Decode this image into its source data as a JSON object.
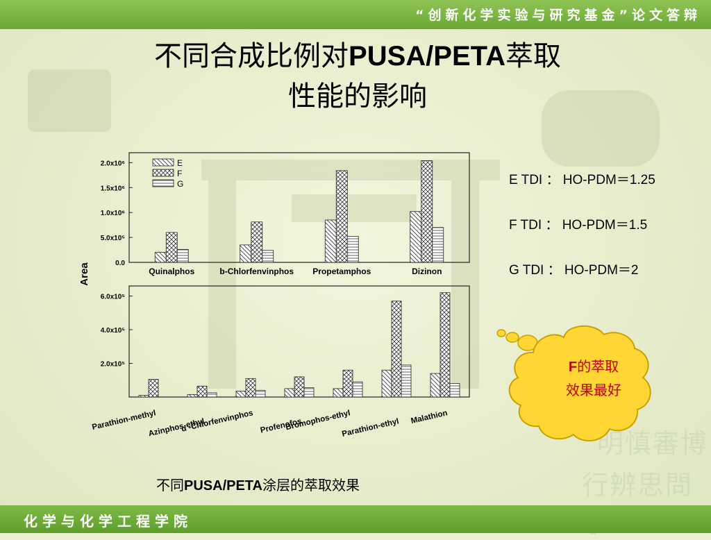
{
  "header": {
    "banner": "“创新化学实验与研究基金”论文答辩"
  },
  "footer": {
    "department": "化学与化学工程学院"
  },
  "slide": {
    "title_line1_a": "不同合成比例对",
    "title_line1_b": "PUSA/PETA",
    "title_line1_c": "萃取",
    "title_line2": "性能的影响",
    "caption_a": "不同",
    "caption_b": "PUSA/PETA",
    "caption_c": "涂层的萃取效果",
    "ratios": [
      "E TDI ： HO-PDM＝1.25",
      "F TDI ： HO-PDM＝1.5",
      "G TDI ： HO-PDM＝2"
    ],
    "bubble_line1_a": "F",
    "bubble_line1_b": "的萃取",
    "bubble_line2": "效果最好",
    "watermark_motto_1": "明慎審博",
    "watermark_motto_2": "行辨思問學"
  },
  "colors": {
    "topbar": "#6aa834",
    "bubble_fill": "#ffd633",
    "bubble_text": "#c00000"
  },
  "chart_data": [
    {
      "type": "bar",
      "ylabel": "Area",
      "legend": [
        "E",
        "F",
        "G"
      ],
      "legend_position": "top-left",
      "categories": [
        "Quinalphos",
        "b-Chlorfenvinphos",
        "Propetamphos",
        "Dizinon"
      ],
      "yticks": [
        "0.0",
        "5.0x10⁵",
        "1.0x10⁶",
        "1.5x10⁶",
        "2.0x10⁶"
      ],
      "ylim": [
        0,
        2200000
      ],
      "series": [
        {
          "name": "E",
          "values": [
            200000,
            350000,
            850000,
            1020000
          ]
        },
        {
          "name": "F",
          "values": [
            600000,
            810000,
            1840000,
            2040000
          ]
        },
        {
          "name": "G",
          "values": [
            260000,
            240000,
            520000,
            700000
          ]
        }
      ]
    },
    {
      "type": "bar",
      "categories": [
        "Parathion-methyl",
        "Azinphos-ethyl",
        "α -Chlorfenvinphos",
        "Profenofos",
        "Bromophos-ethyl",
        "Parathion-ethyl",
        "Malathion"
      ],
      "yticks": [
        "2.0x10⁵",
        "4.0x10⁵",
        "6.0x10⁵"
      ],
      "ylim": [
        0,
        660000
      ],
      "series": [
        {
          "name": "E",
          "values": [
            10000,
            15000,
            35000,
            50000,
            50000,
            160000,
            140000
          ]
        },
        {
          "name": "F",
          "values": [
            105000,
            65000,
            110000,
            120000,
            160000,
            570000,
            620000
          ]
        },
        {
          "name": "G",
          "values": [
            0,
            25000,
            40000,
            55000,
            90000,
            190000,
            80000
          ]
        }
      ]
    }
  ]
}
